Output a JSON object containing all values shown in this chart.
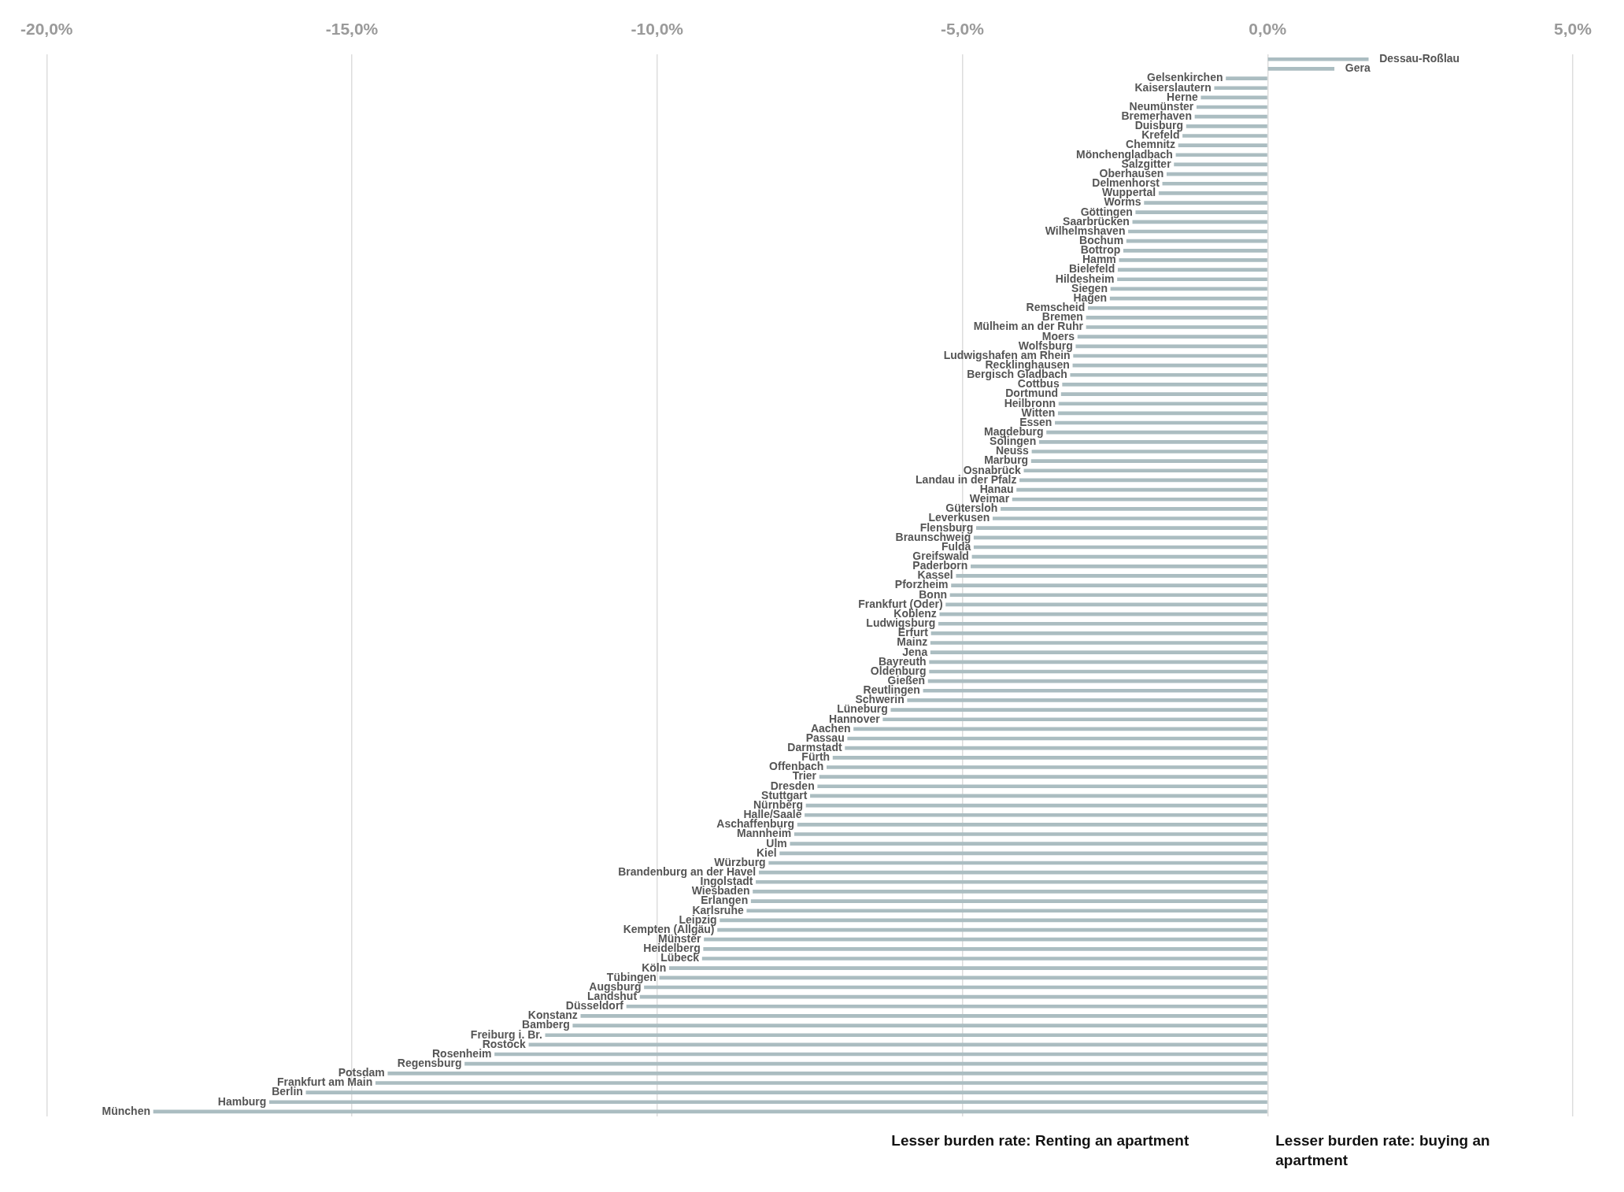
{
  "chart_data": {
    "type": "bar",
    "orientation": "horizontal",
    "categories": [
      "Dessau-Roßlau",
      "Gera",
      "Gelsenkirchen",
      "Kaiserslautern",
      "Herne",
      "Neumünster",
      "Bremerhaven",
      "Duisburg",
      "Krefeld",
      "Chemnitz",
      "Mönchengladbach",
      "Salzgitter",
      "Oberhausen",
      "Delmenhorst",
      "Wuppertal",
      "Worms",
      "Göttingen",
      "Saarbrücken",
      "Wilhelmshaven",
      "Bochum",
      "Bottrop",
      "Hamm",
      "Bielefeld",
      "Hildesheim",
      "Siegen",
      "Hagen",
      "Remscheid",
      "Bremen",
      "Mülheim an der Ruhr",
      "Moers",
      "Wolfsburg",
      "Ludwigshafen am Rhein",
      "Recklinghausen",
      "Bergisch Gladbach",
      "Cottbus",
      "Dortmund",
      "Heilbronn",
      "Witten",
      "Essen",
      "Magdeburg",
      "Solingen",
      "Neuss",
      "Marburg",
      "Osnabrück",
      "Landau in der Pfalz",
      "Hanau",
      "Weimar",
      "Gütersloh",
      "Leverkusen",
      "Flensburg",
      "Braunschweig",
      "Fulda",
      "Greifswald",
      "Paderborn",
      "Kassel",
      "Pforzheim",
      "Bonn",
      "Frankfurt (Oder)",
      "Koblenz",
      "Ludwigsburg",
      "Erfurt",
      "Mainz",
      "Jena",
      "Bayreuth",
      "Oldenburg",
      "Gießen",
      "Reutlingen",
      "Schwerin",
      "Lüneburg",
      "Hannover",
      "Aachen",
      "Passau",
      "Darmstadt",
      "Fürth",
      "Offenbach",
      "Trier",
      "Dresden",
      "Stuttgart",
      "Nürnberg",
      "Halle/Saale",
      "Aschaffenburg",
      "Mannheim",
      "Ulm",
      "Kiel",
      "Würzburg",
      "Brandenburg an der Havel",
      "Ingolstadt",
      "Wiesbaden",
      "Erlangen",
      "Karlsruhe",
      "Leipzig",
      "Kempten (Allgäu)",
      "Münster",
      "Heidelberg",
      "Lübeck",
      "Köln",
      "Tübingen",
      "Augsburg",
      "Landshut",
      "Düsseldorf",
      "Konstanz",
      "Bamberg",
      "Freiburg i. Br.",
      "Rostock",
      "Rosenheim",
      "Regensburg",
      "Potsdam",
      "Frankfurt am Main",
      "Berlin",
      "Hamburg",
      "München"
    ],
    "values": [
      1.65,
      1.09,
      -0.68,
      -0.87,
      -1.09,
      -1.16,
      -1.19,
      -1.33,
      -1.39,
      -1.46,
      -1.5,
      -1.53,
      -1.65,
      -1.72,
      -1.78,
      -2.02,
      -2.16,
      -2.21,
      -2.28,
      -2.31,
      -2.36,
      -2.43,
      -2.45,
      -2.46,
      -2.57,
      -2.58,
      -2.94,
      -2.97,
      -2.97,
      -3.11,
      -3.14,
      -3.18,
      -3.19,
      -3.23,
      -3.36,
      -3.38,
      -3.42,
      -3.43,
      -3.48,
      -3.62,
      -3.74,
      -3.86,
      -3.87,
      -3.99,
      -4.06,
      -4.11,
      -4.18,
      -4.37,
      -4.5,
      -4.77,
      -4.81,
      -4.81,
      -4.84,
      -4.86,
      -5.1,
      -5.18,
      -5.2,
      -5.27,
      -5.37,
      -5.39,
      -5.51,
      -5.52,
      -5.52,
      -5.54,
      -5.54,
      -5.56,
      -5.64,
      -5.9,
      -6.17,
      -6.3,
      -6.78,
      -6.88,
      -6.92,
      -7.12,
      -7.22,
      -7.34,
      -7.37,
      -7.49,
      -7.56,
      -7.58,
      -7.7,
      -7.75,
      -7.82,
      -7.99,
      -8.17,
      -8.33,
      -8.38,
      -8.43,
      -8.46,
      -8.53,
      -8.97,
      -9.01,
      -9.23,
      -9.24,
      -9.26,
      -9.8,
      -9.96,
      -10.21,
      -10.28,
      -10.5,
      -11.25,
      -11.38,
      -11.83,
      -12.1,
      -12.66,
      -13.15,
      -14.41,
      -14.61,
      -15.75,
      -16.35,
      -18.25
    ],
    "color": "#abbdc1",
    "xlim": [
      -20,
      5
    ],
    "xticks": [
      {
        "value": -20,
        "label": "-20,0%"
      },
      {
        "value": -15,
        "label": "-15,0%"
      },
      {
        "value": -10,
        "label": "-10,0%"
      },
      {
        "value": -5,
        "label": "-5,0%"
      },
      {
        "value": 0,
        "label": "0,0%"
      },
      {
        "value": 5,
        "label": "5,0%"
      }
    ],
    "grid": "x",
    "annotations": [
      "Lesser burden rate: Renting an apartment",
      "Lesser burden rate: buying an apartment"
    ]
  }
}
